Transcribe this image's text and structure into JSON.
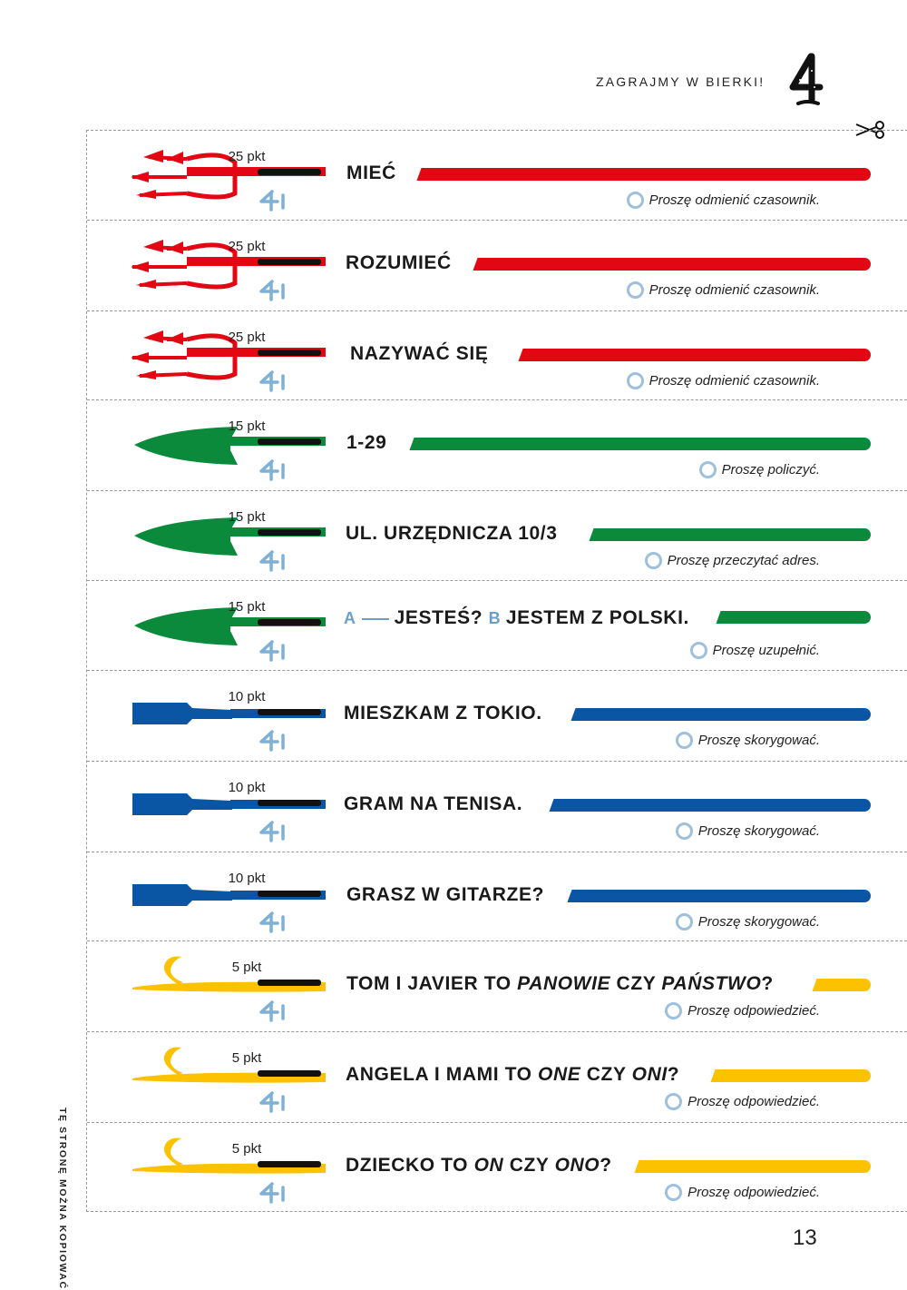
{
  "header": {
    "title": "ZAGRAJMY W BIERKI!",
    "chapter": "4"
  },
  "side_note": "TĘ STRONĘ MOŻNA KOPIOWAĆ",
  "page_number": "13",
  "colors": {
    "red": "#e30613",
    "green": "#0a8a3a",
    "blue": "#0b56a4",
    "yellow": "#fcc200",
    "ring": "#9ec0dc"
  },
  "cards": [
    {
      "points": "25 pkt",
      "type": "trident",
      "color": "#e30613",
      "word": "MIEĆ",
      "instruction": "Proszę odmienić czasownik."
    },
    {
      "points": "25 pkt",
      "type": "trident",
      "color": "#e30613",
      "word": "ROZUMIEĆ",
      "instruction": "Proszę odmienić czasownik."
    },
    {
      "points": "25 pkt",
      "type": "trident",
      "color": "#e30613",
      "word": "NAZYWAĆ SIĘ",
      "instruction": "Proszę odmienić czasownik."
    },
    {
      "points": "15 pkt",
      "type": "spear",
      "color": "#0a8a3a",
      "word": "1-29",
      "instruction": "Proszę policzyć."
    },
    {
      "points": "15 pkt",
      "type": "spear",
      "color": "#0a8a3a",
      "word": "UL. URZĘDNICZA 10/3",
      "instruction": "Proszę przeczytać adres."
    },
    {
      "points": "15 pkt",
      "type": "spear",
      "color": "#0a8a3a",
      "word_a": "A",
      "word_a_text": "JESTEŚ?",
      "word_b": "B",
      "word_b_text": "JESTEM Z POLSKI.",
      "instruction": "Proszę uzupełnić."
    },
    {
      "points": "10 pkt",
      "type": "paddle",
      "color": "#0b56a4",
      "word": "MIESZKAM Z TOKIO.",
      "instruction": "Proszę skorygować."
    },
    {
      "points": "10 pkt",
      "type": "paddle",
      "color": "#0b56a4",
      "word": "GRAM NA TENISA.",
      "instruction": "Proszę skorygować."
    },
    {
      "points": "10 pkt",
      "type": "paddle",
      "color": "#0b56a4",
      "word": "GRASZ W GITARZE?",
      "instruction": "Proszę skorygować."
    },
    {
      "points": "5 pkt",
      "type": "hook",
      "color": "#fcc200",
      "word_pre": "TOM I JAVIER TO ",
      "word_i1": "PANOWIE",
      "word_mid": " CZY ",
      "word_i2": "PAŃSTWO",
      "word_post": "?",
      "instruction": "Proszę odpowiedzieć."
    },
    {
      "points": "5 pkt",
      "type": "hook",
      "color": "#fcc200",
      "word_pre": "ANGELA I MAMI TO ",
      "word_i1": "ONE",
      "word_mid": " CZY ",
      "word_i2": "ONI",
      "word_post": "?",
      "instruction": "Proszę odpowiedzieć."
    },
    {
      "points": "5 pkt",
      "type": "hook",
      "color": "#fcc200",
      "word_pre": "DZIECKO TO ",
      "word_i1": "ON",
      "word_mid": " CZY ",
      "word_i2": "ONO",
      "word_post": "?",
      "instruction": "Proszę odpowiedzieć."
    }
  ]
}
